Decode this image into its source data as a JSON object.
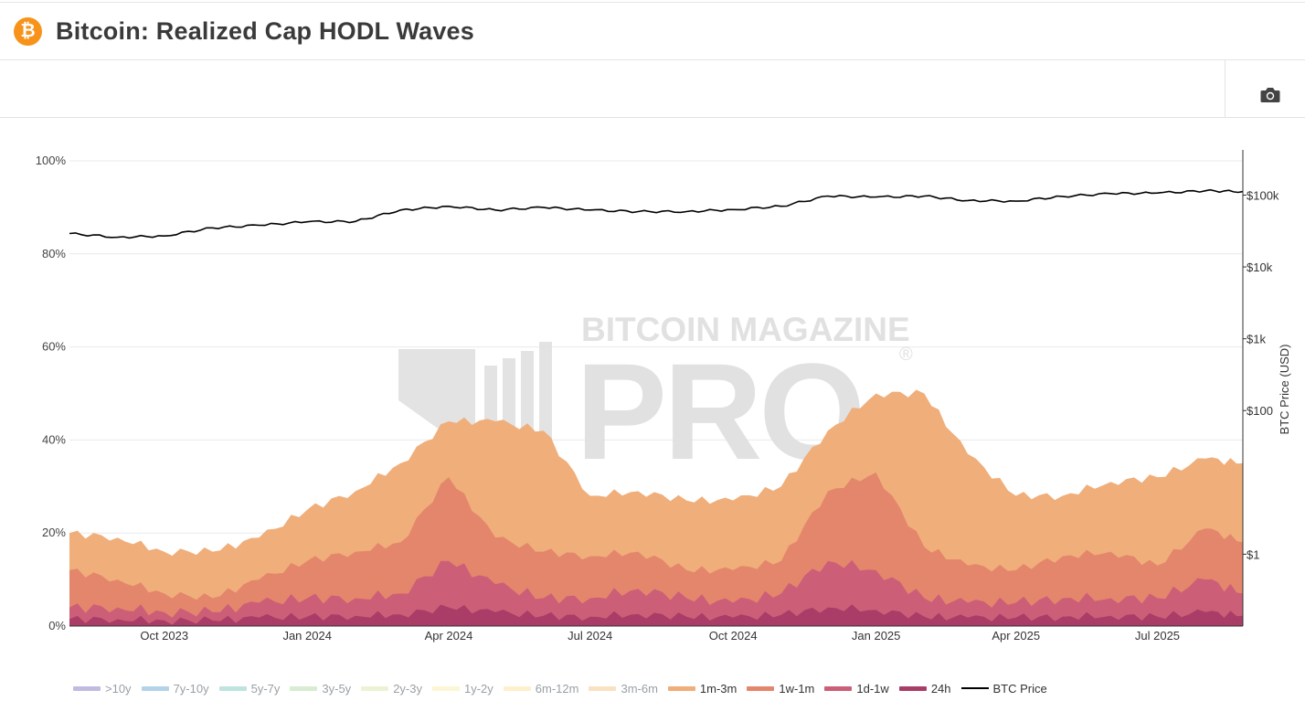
{
  "header": {
    "title": "Bitcoin: Realized Cap HODL Waves",
    "logo_symbol": "₿"
  },
  "toolbar": {
    "camera_icon": "camera-icon"
  },
  "watermark": {
    "line1": "BITCOIN MAGAZINE",
    "line2": "PRO",
    "mark": "®"
  },
  "colors": {
    "accent": "#f7931a",
    "1m-3m": "#f0ae7a",
    "1w-1m": "#e4866c",
    "1d-1w": "#cc5f77",
    "24h": "#a93d68",
    "price": "#000000"
  },
  "chart_data": {
    "type": "area",
    "title": "Bitcoin: Realized Cap HODL Waves",
    "stacking": "stacked percent (cumulative top edge shown per band)",
    "x": [
      "2023-08-01",
      "2023-09-01",
      "2023-10-01",
      "2023-11-01",
      "2023-12-01",
      "2024-01-01",
      "2024-02-01",
      "2024-03-01",
      "2024-04-01",
      "2024-05-01",
      "2024-06-01",
      "2024-07-01",
      "2024-08-01",
      "2024-09-01",
      "2024-10-01",
      "2024-11-01",
      "2024-12-01",
      "2025-01-01",
      "2025-02-01",
      "2025-03-01",
      "2025-04-01",
      "2025-05-01",
      "2025-06-01",
      "2025-07-01",
      "2025-08-01",
      "2025-08-25"
    ],
    "x_ticks": [
      "Oct 2023",
      "Jan 2024",
      "Apr 2024",
      "Jul 2024",
      "Oct 2024",
      "Jan 2025",
      "Apr 2025",
      "Jul 2025"
    ],
    "y_ticks": [
      "0%",
      "20%",
      "40%",
      "60%",
      "80%",
      "100%"
    ],
    "ylim": [
      0,
      100
    ],
    "series": [
      {
        "name": "1m-3m",
        "cumulative_top": [
          20,
          19,
          16,
          16,
          19,
          25,
          29,
          35,
          44,
          44,
          42,
          28,
          29,
          27,
          27,
          30,
          42,
          50,
          50,
          37,
          28,
          28,
          31,
          32,
          36,
          35
        ]
      },
      {
        "name": "1w-1m",
        "cumulative_top": [
          12,
          10,
          7,
          6,
          10,
          14,
          16,
          18,
          32,
          19,
          16,
          15,
          16,
          12,
          12,
          14,
          29,
          33,
          17,
          13,
          12,
          15,
          16,
          13,
          21,
          18
        ]
      },
      {
        "name": "1d-1w",
        "cumulative_top": [
          4,
          4,
          3,
          3,
          5,
          6,
          6,
          7,
          14,
          9,
          6,
          6,
          8,
          6,
          5,
          7,
          14,
          12,
          6,
          5,
          5,
          6,
          6,
          6,
          10,
          7
        ]
      },
      {
        "name": "24h",
        "cumulative_top": [
          1.5,
          1.5,
          1.2,
          1.2,
          1.8,
          2,
          2.2,
          2.5,
          4,
          3,
          2.2,
          2,
          2.6,
          2,
          1.8,
          2.4,
          4,
          3.5,
          2,
          1.8,
          1.8,
          2,
          2.2,
          2,
          3,
          2.2
        ]
      }
    ],
    "y2": {
      "label": "BTC Price (USD)",
      "scale": "log",
      "ticks": [
        "$1",
        "$100",
        "$1k",
        "$10k",
        "$100k"
      ],
      "tick_values": [
        1,
        100,
        1000,
        10000,
        100000
      ]
    },
    "price_series": {
      "name": "BTC Price",
      "values": [
        29200,
        25900,
        27000,
        35000,
        38000,
        42500,
        43000,
        62000,
        70000,
        62000,
        67500,
        62000,
        59000,
        59000,
        63000,
        70000,
        97000,
        94000,
        97000,
        84000,
        82500,
        96000,
        105000,
        107000,
        115000,
        112000
      ]
    },
    "legend": {
      "placement": "bottom",
      "items": [
        {
          "label": ">10y",
          "color": "#c2bbe0",
          "active": false
        },
        {
          "label": "7y-10y",
          "color": "#b4d3e8",
          "active": false
        },
        {
          "label": "5y-7y",
          "color": "#bfe3de",
          "active": false
        },
        {
          "label": "3y-5y",
          "color": "#d7ecd2",
          "active": false
        },
        {
          "label": "2y-3y",
          "color": "#ecf3d3",
          "active": false
        },
        {
          "label": "1y-2y",
          "color": "#fbf6d4",
          "active": false
        },
        {
          "label": "6m-12m",
          "color": "#fdf0cb",
          "active": false
        },
        {
          "label": "3m-6m",
          "color": "#f9e1c1",
          "active": false
        },
        {
          "label": "1m-3m",
          "color": "#f0ae7a",
          "active": true
        },
        {
          "label": "1w-1m",
          "color": "#e4866c",
          "active": true
        },
        {
          "label": "1d-1w",
          "color": "#cc5f77",
          "active": true
        },
        {
          "label": "24h",
          "color": "#a93d68",
          "active": true
        },
        {
          "label": "BTC Price",
          "color": "#000000",
          "active": true,
          "line": true
        }
      ]
    }
  }
}
